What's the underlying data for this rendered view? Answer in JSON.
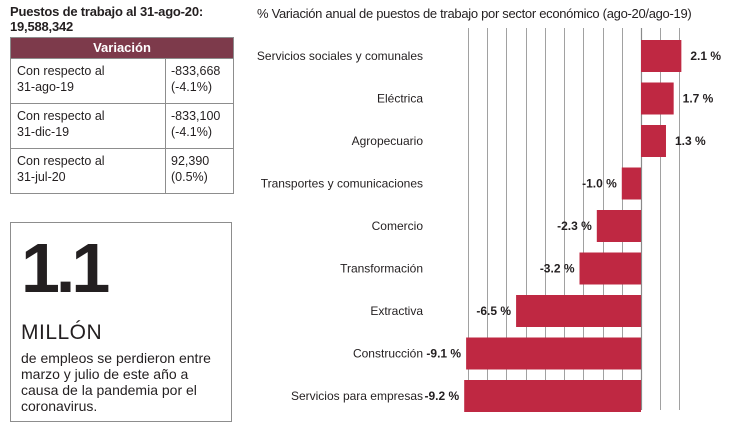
{
  "summary": {
    "title_line1": "Puestos de trabajo al 31-ago-20:",
    "title_line2": "19,588,342",
    "table_header": "Variación",
    "rows": [
      {
        "label_line1": "Con respecto al",
        "label_line2": "31-ago-19",
        "value_line1": "-833,668",
        "value_line2": "(-4.1%)"
      },
      {
        "label_line1": "Con respecto al",
        "label_line2": "31-dic-19",
        "value_line1": "-833,100",
        "value_line2": "(-4.1%)"
      },
      {
        "label_line1": "Con respecto al",
        "label_line2": "31-jul-20",
        "value_line1": "92,390",
        "value_line2": "(0.5%)"
      }
    ]
  },
  "callout": {
    "number": "1.1",
    "unit": "MILLÓN",
    "text": "de empleos se perdieron entre marzo y julio de este año a causa de la pandemia por el coronavirus."
  },
  "colors": {
    "bar": "#bf2842",
    "header": "#7d3a4b",
    "grid": "#8a8a8a"
  },
  "chart_data": {
    "type": "bar",
    "orientation": "horizontal",
    "title": "% Variación anual de puestos de trabajo por sector económico (ago-20/ago-19)",
    "categories": [
      "Servicios sociales y comunales",
      "Eléctrica",
      "Agropecuario",
      "Transportes y comunicaciones",
      "Comercio",
      "Transformación",
      "Extractiva",
      "Construcción",
      "Servicios para empresas"
    ],
    "values": [
      2.1,
      1.7,
      1.3,
      -1.0,
      -2.3,
      -3.2,
      -6.5,
      -9.1,
      -9.2
    ],
    "value_labels": [
      "2.1 %",
      "1.7 %",
      "1.3 %",
      "-1.0 %",
      "-2.3 %",
      "-3.2 %",
      "-6.5 %",
      "-9.1 %",
      "-9.2 %"
    ],
    "xlim": [
      -9.2,
      2.3
    ],
    "gridlines": [
      -9,
      -8,
      -7,
      -6,
      -5,
      -4,
      -3,
      -2,
      -1,
      0,
      1,
      2
    ],
    "grid": true
  }
}
